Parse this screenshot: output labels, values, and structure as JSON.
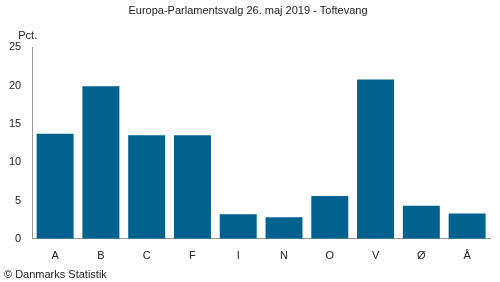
{
  "chart_data": {
    "type": "bar",
    "title": "Europa-Parlamentsvalg 26. maj 2019 - Toftevang",
    "ylabel": "Pct.",
    "annotations": [
      "© Danmarks Statistik"
    ],
    "categories": [
      "A",
      "B",
      "C",
      "F",
      "I",
      "N",
      "O",
      "V",
      "Ø",
      "Å"
    ],
    "values": [
      13.7,
      19.9,
      13.5,
      13.5,
      3.2,
      2.8,
      5.6,
      20.8,
      4.3,
      3.3
    ],
    "color": "#00628f",
    "ylim": [
      0,
      25
    ],
    "yticks": [
      0,
      5,
      10,
      15,
      20,
      25
    ],
    "grid": false
  }
}
